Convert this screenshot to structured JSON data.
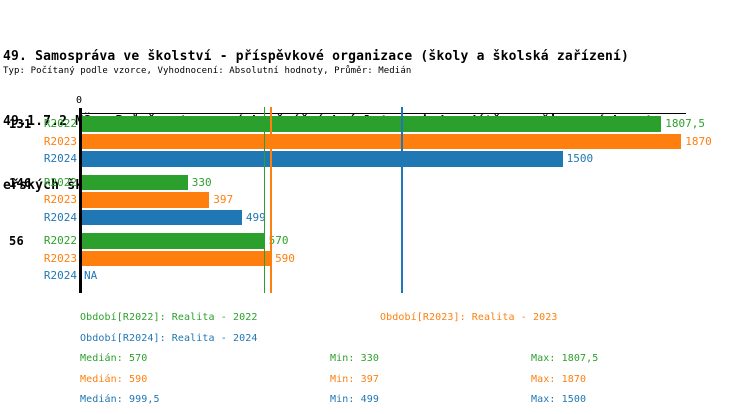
{
  "title": {
    "line1": "49. Samospráva ve školství - příspěvkové organizace (školy a školská zařízení)",
    "line2": "49.1.7.2 MŠ - Průměr stanovených měsíčních úplat na jedno dítě ve zřizovaných mat",
    "line3": "eřských školách"
  },
  "subtitle": "Typ: Počítaný podle vzorce, Vyhodnocení: Absolutní hodnoty, Průměr: Medián",
  "colors": {
    "r2022_green": "#2ca02c",
    "r2023_orange": "#ff7f0e",
    "r2024_blue": "#1f77b4",
    "axis": "#000000"
  },
  "chart_data": {
    "type": "bar",
    "orientation": "horizontal",
    "title": "49.1.7.2 MŠ - Průměr stanovených měsíčních úplat na jedno dítě ve zřizovaných mateřských školách",
    "axis_zero_label": "0",
    "xlim": [
      0,
      1888
    ],
    "grid": false,
    "categories": [
      "131",
      "146",
      "56"
    ],
    "series": [
      {
        "name": "R2022",
        "color": "#2ca02c",
        "values": [
          1807.5,
          330,
          570
        ],
        "labels": [
          "1807,5",
          "330",
          "570"
        ]
      },
      {
        "name": "R2023",
        "color": "#ff7f0e",
        "values": [
          1870,
          397,
          590
        ],
        "labels": [
          "1870",
          "397",
          "590"
        ]
      },
      {
        "name": "R2024",
        "color": "#1f77b4",
        "values": [
          1500,
          499,
          null
        ],
        "labels": [
          "1500",
          "499",
          "NA"
        ]
      }
    ],
    "median_lines": [
      {
        "name": "median-R2022",
        "value": 570,
        "color": "#2ca02c"
      },
      {
        "name": "median-R2023",
        "value": 590,
        "color": "#ff7f0e"
      },
      {
        "name": "median-R2024",
        "value": 999.5,
        "color": "#1f77b4"
      }
    ],
    "stats": {
      "R2022": {
        "median": "570",
        "min": "330",
        "max": "1807,5"
      },
      "R2023": {
        "median": "590",
        "min": "397",
        "max": "1870"
      },
      "R2024": {
        "median": "999,5",
        "min": "499",
        "max": "1500"
      }
    }
  },
  "legend": {
    "period_items": [
      {
        "label": "Období[R2022]: Realita - 2022",
        "color": "#2ca02c",
        "row": 0,
        "col": 0
      },
      {
        "label": "Období[R2023]: Realita - 2023",
        "color": "#ff7f0e",
        "row": 0,
        "col": 1
      },
      {
        "label": "Období[R2024]: Realita - 2024",
        "color": "#1f77b4",
        "row": 1,
        "col": 0
      }
    ],
    "stat_rows": [
      {
        "median": "Medián: 570",
        "min": "Min: 330",
        "max": "Max: 1807,5",
        "color": "#2ca02c"
      },
      {
        "median": "Medián: 590",
        "min": "Min: 397",
        "max": "Max: 1870",
        "color": "#ff7f0e"
      },
      {
        "median": "Medián: 999,5",
        "min": "Min: 499",
        "max": "Max: 1500",
        "color": "#1f77b4"
      }
    ]
  }
}
